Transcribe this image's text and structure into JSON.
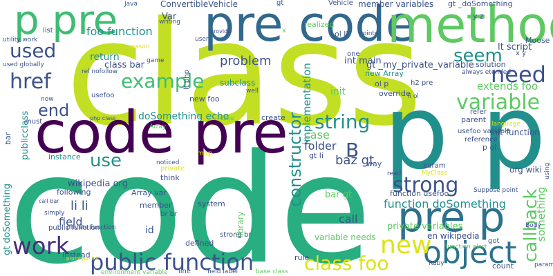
{
  "colors": {
    "lime": "#c2df23",
    "teal": "#21908d",
    "darkpurple": "#440154",
    "indigo": "#3b528b",
    "blue": "#2c728e",
    "green": "#5ec962",
    "green2": "#3fbc73",
    "yellow": "#dde318",
    "purple": "#472d7b",
    "seagreen": "#28ae80",
    "slate": "#31688e",
    "gray": "#414487"
  },
  "words": [
    {
      "text": "class",
      "c": "lime"
    },
    {
      "text": "code",
      "c": "seagreen"
    },
    {
      "text": "code pre",
      "c": "darkpurple"
    },
    {
      "text": "p p",
      "c": "teal"
    },
    {
      "text": "pre code",
      "c": "slate"
    },
    {
      "text": "p pre",
      "c": "green2"
    },
    {
      "text": "method",
      "c": "green"
    },
    {
      "text": "pre p",
      "c": "blue"
    },
    {
      "text": "public function",
      "c": "indigo"
    },
    {
      "text": "object",
      "c": "blue"
    },
    {
      "text": "class foo",
      "c": "yellow"
    },
    {
      "text": "work",
      "c": "purple"
    },
    {
      "text": "new",
      "c": "yellow"
    },
    {
      "text": "string",
      "c": "teal"
    },
    {
      "text": "strong",
      "c": "indigo"
    },
    {
      "text": "need",
      "c": "indigo"
    },
    {
      "text": "variable",
      "c": "green"
    },
    {
      "text": "example",
      "c": "green2"
    },
    {
      "text": "href",
      "c": "indigo"
    },
    {
      "text": "used",
      "c": "indigo"
    },
    {
      "text": "seem",
      "c": "teal"
    },
    {
      "text": "end",
      "c": "indigo"
    },
    {
      "text": "use",
      "c": "teal"
    },
    {
      "text": "B",
      "c": "indigo"
    },
    {
      "text": "callback",
      "c": "green"
    },
    {
      "text": "constructor",
      "c": "teal"
    },
    {
      "text": "function doSomething",
      "c": "teal"
    },
    {
      "text": "foo function",
      "c": "teal"
    },
    {
      "text": "li li",
      "c": "indigo"
    },
    {
      "text": "baz gt",
      "c": "indigo"
    },
    {
      "text": "extends foo",
      "c": "green"
    },
    {
      "text": "doSomething echo",
      "c": "teal"
    },
    {
      "text": "problem",
      "c": "indigo"
    },
    {
      "text": "field",
      "c": "indigo"
    },
    {
      "text": "call",
      "c": "indigo"
    },
    {
      "text": "ConvertibleVehicle",
      "c": "indigo"
    },
    {
      "text": "gt _doSomething",
      "c": "indigo"
    },
    {
      "text": "gt _my_private_variable",
      "c": "indigo"
    },
    {
      "text": "int main",
      "c": "indigo"
    },
    {
      "text": "implementation",
      "c": "teal"
    },
    {
      "text": "wikipedia org",
      "c": "indigo"
    },
    {
      "text": "private variables",
      "c": "green"
    },
    {
      "text": "case",
      "c": "green"
    },
    {
      "text": "folder",
      "c": "indigo"
    },
    {
      "text": "something",
      "c": "green"
    },
    {
      "text": "lt script",
      "c": "indigo"
    },
    {
      "text": "init",
      "c": "green"
    },
    {
      "text": "init function",
      "c": "indigo"
    },
    {
      "text": "return",
      "c": "teal"
    },
    {
      "text": "class bar",
      "c": "indigo"
    },
    {
      "text": "subclass",
      "c": "teal"
    },
    {
      "text": "Var",
      "c": "indigo"
    },
    {
      "text": "gt doSomething",
      "c": "teal"
    },
    {
      "text": "publicclass",
      "c": "teal"
    },
    {
      "text": "member variables",
      "c": "indigo"
    },
    {
      "text": "en wikipedia",
      "c": "indigo"
    },
    {
      "text": "variable needs",
      "c": "green"
    },
    {
      "text": "org wiki",
      "c": "indigo"
    },
    {
      "text": "p ol",
      "c": "indigo"
    },
    {
      "text": "gt li",
      "c": "indigo"
    },
    {
      "text": "parent",
      "c": "indigo"
    },
    {
      "text": "library",
      "c": "green"
    },
    {
      "text": "usefoo variable",
      "c": "indigo"
    },
    {
      "text": "solution",
      "c": "indigo"
    },
    {
      "text": "Moose",
      "c": "indigo"
    },
    {
      "text": "way",
      "c": "indigo"
    },
    {
      "text": "instance",
      "c": "teal"
    },
    {
      "text": "following",
      "c": "indigo"
    },
    {
      "text": "id",
      "c": "indigo"
    },
    {
      "text": "member",
      "c": "indigo"
    },
    {
      "text": "Array var",
      "c": "indigo"
    },
    {
      "text": "bar gt",
      "c": "green"
    },
    {
      "text": "function usefoo",
      "c": "indigo"
    },
    {
      "text": "new Array",
      "c": "teal"
    },
    {
      "text": "ol p",
      "c": "indigo"
    },
    {
      "text": "ol li",
      "c": "indigo"
    },
    {
      "text": "override",
      "c": "indigo"
    },
    {
      "text": "h2 pre",
      "c": "indigo"
    },
    {
      "text": "refer",
      "c": "indigo"
    },
    {
      "text": "reference",
      "c": "indigo"
    },
    {
      "text": "public function",
      "c": "indigo"
    },
    {
      "text": "strong br",
      "c": "indigo"
    },
    {
      "text": "create",
      "c": "indigo"
    },
    {
      "text": "think",
      "c": "indigo"
    },
    {
      "text": "system",
      "c": "indigo"
    },
    {
      "text": "defined",
      "c": "indigo"
    },
    {
      "text": "line",
      "c": "indigo"
    },
    {
      "text": "field label",
      "c": "indigo"
    },
    {
      "text": "rule",
      "c": "indigo"
    },
    {
      "text": "count",
      "c": "indigo"
    },
    {
      "text": "base class",
      "c": "green"
    },
    {
      "text": "instead",
      "c": "indigo"
    },
    {
      "text": "private",
      "c": "yellow"
    },
    {
      "text": "must",
      "c": "indigo"
    },
    {
      "text": "bar",
      "c": "indigo"
    },
    {
      "text": "new foo",
      "c": "indigo"
    },
    {
      "text": "usefoo",
      "c": "indigo"
    },
    {
      "text": "rel nofollow",
      "c": "indigo"
    },
    {
      "text": "one",
      "c": "indigo"
    },
    {
      "text": "well",
      "c": "indigo"
    },
    {
      "text": "now",
      "c": "indigo"
    },
    {
      "text": "utility work",
      "c": "indigo"
    },
    {
      "text": "used globally",
      "c": "indigo"
    },
    {
      "text": "php class",
      "c": "indigo"
    },
    {
      "text": "Array",
      "c": "green"
    },
    {
      "text": "call bar",
      "c": "indigo"
    },
    {
      "text": "simply",
      "c": "indigo"
    },
    {
      "text": "private function",
      "c": "indigo"
    },
    {
      "text": "environment variable",
      "c": "green"
    },
    {
      "text": "gt",
      "c": "indigo"
    },
    {
      "text": "Vehicle",
      "c": "indigo"
    },
    {
      "text": "Java",
      "c": "indigo"
    },
    {
      "text": "writing",
      "c": "indigo"
    },
    {
      "text": "user",
      "c": "indigo"
    },
    {
      "text": "realized",
      "c": "green"
    },
    {
      "text": "x",
      "c": "green"
    },
    {
      "text": "pointer",
      "c": "indigo"
    },
    {
      "text": "provide",
      "c": "indigo"
    },
    {
      "text": "always etended",
      "c": "indigo"
    },
    {
      "text": "read",
      "c": "indigo"
    },
    {
      "text": "case",
      "c": "green"
    },
    {
      "text": "noticed",
      "c": "indigo"
    },
    {
      "text": "param",
      "c": "indigo"
    },
    {
      "text": "MyClass",
      "c": "yellow"
    },
    {
      "text": "Suppose point",
      "c": "indigo"
    },
    {
      "text": "language",
      "c": "yellow"
    },
    {
      "text": "using",
      "c": "indigo"
    },
    {
      "text": "parameter lists",
      "c": "indigo"
    },
    {
      "text": "Body",
      "c": "indigo"
    },
    {
      "text": "got",
      "c": "indigo"
    },
    {
      "text": "list",
      "c": "indigo"
    },
    {
      "text": "y z",
      "c": "indigo"
    },
    {
      "text": "x y",
      "c": "indigo"
    },
    {
      "text": "li ol",
      "c": "indigo"
    },
    {
      "text": "game",
      "c": "indigo"
    },
    {
      "text": "reason",
      "c": "yellow"
    },
    {
      "text": "br br",
      "c": "indigo"
    },
    {
      "text": "lt php",
      "c": "indigo"
    },
    {
      "text": "function alert",
      "c": "green"
    },
    {
      "text": "Ruby",
      "c": "indigo"
    },
    {
      "text": "map",
      "c": "yellow"
    },
    {
      "text": "prototype init",
      "c": "yellow"
    },
    {
      "text": "echo bar",
      "c": "indigo"
    }
  ]
}
